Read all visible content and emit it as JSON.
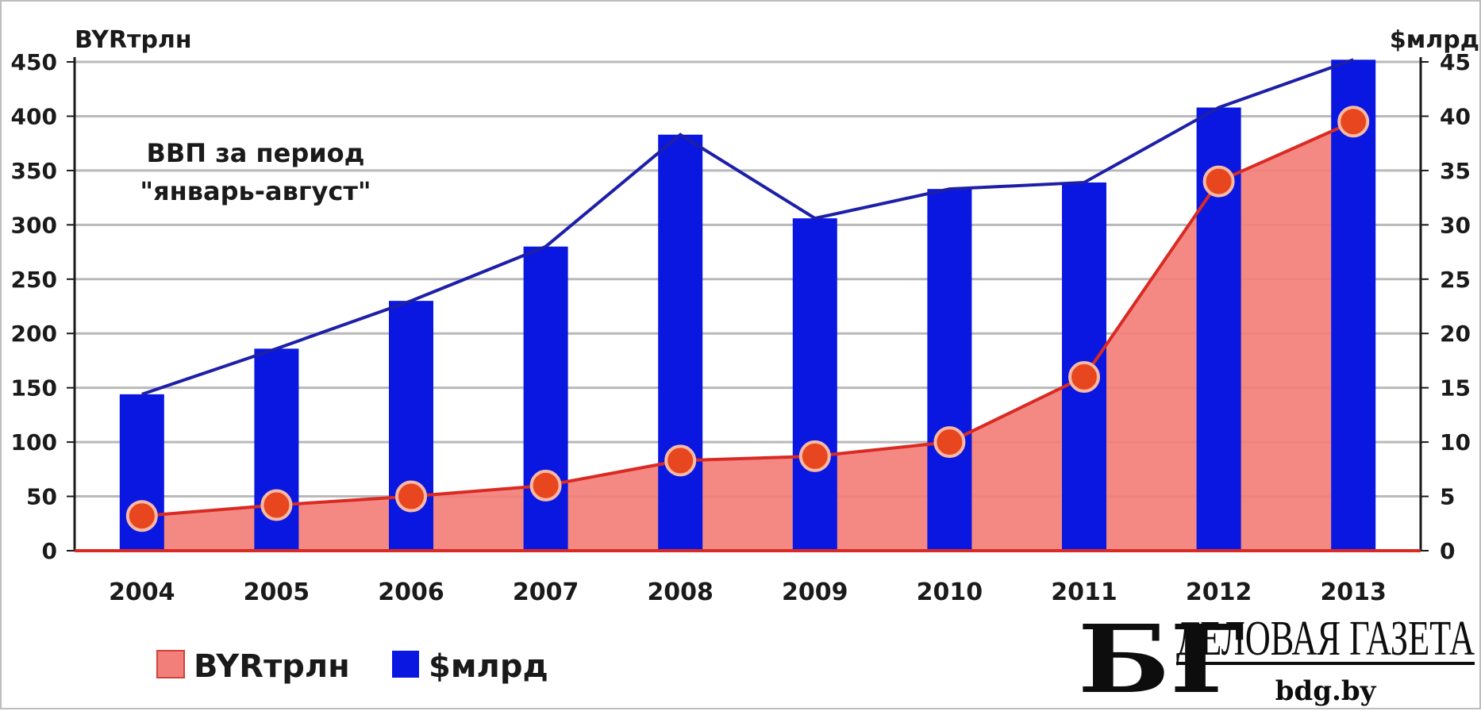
{
  "chart_data": {
    "type": "bar",
    "categories": [
      "2004",
      "2005",
      "2006",
      "2007",
      "2008",
      "2009",
      "2010",
      "2011",
      "2012",
      "2013"
    ],
    "series": [
      {
        "name": "$млрд",
        "type": "bar",
        "axis": "right",
        "color": "#0a17e0",
        "values": [
          14.4,
          18.6,
          23.0,
          28.0,
          38.3,
          30.6,
          33.3,
          33.9,
          40.8,
          45.2
        ]
      },
      {
        "name": "BYRтрлн",
        "type": "area",
        "axis": "left",
        "color": "#f37f7a",
        "marker_color": "#e8461e",
        "values": [
          32,
          42,
          50,
          60,
          83,
          87,
          100,
          160,
          340,
          395
        ]
      }
    ],
    "left_axis": {
      "unit_label": "BYRтрлн",
      "range": [
        0,
        450
      ],
      "ticks": [
        0,
        50,
        100,
        150,
        200,
        250,
        300,
        350,
        400,
        450
      ]
    },
    "right_axis": {
      "unit_label": "$млрд",
      "range": [
        0,
        45
      ],
      "ticks": [
        0,
        5,
        10,
        15,
        20,
        25,
        30,
        35,
        40,
        45
      ]
    },
    "annotation": [
      "ВВП за период",
      "\"январь-август\""
    ],
    "grid": true,
    "legend": {
      "position": "bottom-left",
      "items": [
        {
          "label": "BYRтрлн",
          "color": "#f37f7a"
        },
        {
          "label": "$млрд",
          "color": "#0a17e0"
        }
      ]
    }
  },
  "logo": {
    "mark": "БГ",
    "name": "ДЕЛОВАЯ ГАЗЕТА",
    "url": "bdg.by"
  }
}
